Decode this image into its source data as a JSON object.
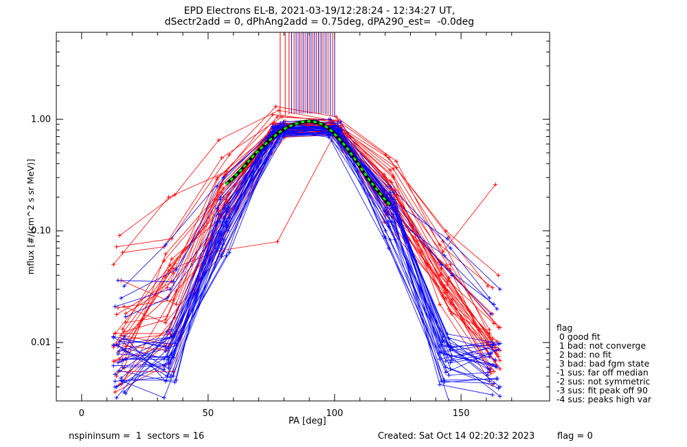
{
  "title_line1": "EPD Electrons EL-B, 2021-03-19/12:28:24 - 12:34:27 UT,",
  "title_line2": "dSectr2add = 0, dPhAng2add = 0.75deg, dPA290_est=  -0.0deg",
  "footer": {
    "left": "nspininsum =  1  sectors = 16",
    "created": "Created: Sat Oct 14 02:20:32 2023",
    "flag": "flag = 0"
  },
  "legend": {
    "heading": "flag",
    "items": [
      " 0 good fit",
      " 1 bad: not converge",
      " 2 bad: no fit",
      " 3 bad: bad fgm state",
      "-1 sus: far off median",
      "-2 sus: not symmetric",
      "-3 sus: fit peak off 90",
      "-4 sus: peaks high var"
    ]
  },
  "colors": {
    "series_a": "#ff0000",
    "series_b": "#0000ff",
    "fit_outer": "#000000",
    "fit_inner": "#00ff00",
    "axes": "#000000"
  },
  "chart_data": {
    "type": "line",
    "xlabel": "PA [deg]",
    "ylabel": "mflux [#/(cm^2 s sr MeV)]",
    "xlim": [
      -10,
      185
    ],
    "ylim": [
      0.003,
      6
    ],
    "yscale": "log",
    "xticks": [
      0,
      50,
      100,
      150
    ],
    "xtick_labels": [
      "0",
      "50",
      "100",
      "150"
    ],
    "yticks": [
      0.01,
      0.1,
      1.0
    ],
    "ytick_labels": [
      "0.01",
      "0.10",
      "1.00"
    ],
    "grid": false,
    "pa_bins": [
      15,
      35,
      56,
      78,
      100,
      122,
      144,
      163
    ],
    "series": [
      {
        "color": "red",
        "values": [
          [
            0.0068,
            0.013,
            0.19,
            0.9,
            0.92,
            0.3,
            0.052,
            0.018
          ],
          [
            0.0125,
            0.016,
            0.2,
            0.88,
            0.89,
            0.28,
            0.05,
            0.013
          ],
          [
            0.0042,
            0.029,
            0.078,
            0.76,
            0.78,
            0.15,
            0.029,
            0.0058
          ],
          [
            0.0095,
            0.046,
            0.066,
            0.08,
            0.83,
            0.18,
            0.031,
            0.0079
          ],
          [
            0.0068,
            0.0095,
            0.11,
            0.74,
            0.77,
            0.19,
            0.046,
            0.0085
          ],
          [
            0.0182,
            0.031,
            0.31,
            0.96,
            0.93,
            0.27,
            0.022,
            0.0058
          ],
          [
            0.0045,
            0.0094,
            0.26,
            0.86,
            0.83,
            0.26,
            0.038,
            0.0096
          ],
          [
            0.0042,
            0.0167,
            0.15,
            0.7,
            0.79,
            0.14,
            0.025,
            0.0075
          ],
          [
            0.005,
            0.056,
            0.15,
            0.84,
            0.87,
            0.37,
            0.081,
            0.009
          ],
          [
            0.0094,
            0.044,
            0.19,
            0.86,
            0.92,
            0.31,
            0.022,
            0.0042
          ],
          [
            0.0085,
            0.039,
            0.24,
            0.92,
            0.91,
            0.2,
            0.023,
            0.011
          ],
          [
            0.0116,
            0.0094,
            0.13,
            0.83,
            0.75,
            0.25,
            0.033,
            0.0069
          ],
          [
            0.0205,
            0.024,
            0.29,
            1.05,
            0.98,
            0.31,
            0.032,
            0.0085
          ],
          [
            0.0121,
            0.012,
            0.21,
            0.93,
            0.85,
            0.17,
            0.046,
            0.0095
          ],
          [
            0.0151,
            0.0172,
            0.32,
            0.91,
            0.92,
            0.2,
            0.018,
            0.0055
          ],
          [
            0.0132,
            0.054,
            0.22,
            0.8,
            0.8,
            0.18,
            0.02,
            0.0094
          ],
          [
            0.0071,
            0.051,
            0.17,
            0.8,
            0.7,
            0.15,
            0.049,
            0.0136
          ],
          [
            0.0178,
            0.035,
            0.14,
            0.84,
            0.75,
            0.21,
            0.026,
            0.0068
          ],
          [
            0.0091,
            0.026,
            0.32,
            0.83,
            0.89,
            0.16,
            0.04,
            0.0107
          ],
          [
            0.0059,
            0.062,
            0.24,
            0.81,
            0.82,
            0.21,
            0.019,
            0.0121
          ],
          [
            0.0106,
            0.012,
            0.14,
            0.92,
            0.88,
            0.17,
            0.046,
            0.0136
          ],
          [
            0.0082,
            0.042,
            0.3,
            0.85,
            0.76,
            0.32,
            0.032,
            0.0102
          ],
          [
            0.012,
            0.049,
            0.18,
            0.91,
            0.92,
            0.23,
            0.041,
            0.0148
          ],
          [
            0.0093,
            0.0085,
            0.13,
            0.69,
            0.72,
            0.14,
            0.024,
            0.0053
          ],
          [
            0.064,
            0.072,
            0.45,
            1.05,
            0.99,
            0.45,
            0.088,
            0.032
          ],
          [
            0.091,
            0.21,
            0.65,
            1.2,
            0.95,
            0.48,
            0.1,
            0.04
          ],
          [
            0.072,
            0.085,
            0.48,
            1.3,
            1.05,
            0.42,
            0.065,
            0.26
          ],
          [
            0.05,
            0.2,
            0.34,
            1.1,
            0.95,
            0.36,
            0.075,
            0.031
          ],
          [
            0.021,
            0.015,
            0.065,
            0.9,
            1.0,
            0.35,
            0.045,
            0.0075
          ],
          [
            0.036,
            0.022,
            0.25,
            0.9,
            0.85,
            0.28,
            0.035,
            0.0085
          ],
          [
            0.0055,
            0.0055,
            0.19,
            0.72,
            0.8,
            0.12,
            0.028,
            0.0062
          ],
          [
            0.0036,
            0.0065,
            0.16,
            0.81,
            0.85,
            0.16,
            0.034,
            0.0055
          ]
        ]
      },
      {
        "color": "blue",
        "values": [
          [
            0.0062,
            0.0064,
            0.11,
            0.86,
            0.76,
            0.14,
            0.0042,
            0.0034
          ],
          [
            0.0114,
            0.0045,
            0.076,
            0.7,
            0.72,
            0.19,
            0.0058,
            0.0045
          ],
          [
            0.0046,
            0.0046,
            0.19,
            0.76,
            0.81,
            0.14,
            0.0078,
            0.0033
          ],
          [
            0.0066,
            0.0116,
            0.16,
            0.7,
            0.75,
            0.23,
            0.0044,
            0.0048
          ],
          [
            0.004,
            0.0067,
            0.11,
            0.84,
            0.86,
            0.16,
            0.0096,
            0.0063
          ],
          [
            0.0083,
            0.005,
            0.13,
            0.73,
            0.75,
            0.17,
            0.009,
            0.0101
          ],
          [
            0.0071,
            0.0071,
            0.059,
            0.75,
            0.71,
            0.07,
            0.0051,
            0.0054
          ],
          [
            0.0084,
            0.0114,
            0.079,
            0.72,
            0.74,
            0.16,
            0.0068,
            0.0097
          ],
          [
            0.0032,
            0.013,
            0.16,
            0.88,
            0.81,
            0.15,
            0.0114,
            0.0084
          ],
          [
            0.0095,
            0.007,
            0.06,
            0.82,
            0.73,
            0.22,
            0.0081,
            0.0063
          ],
          [
            0.0107,
            0.0092,
            0.11,
            0.9,
            0.84,
            0.083,
            0.0066,
            0.0075
          ],
          [
            0.0048,
            0.0125,
            0.12,
            0.81,
            0.8,
            0.12,
            0.0095,
            0.004
          ],
          [
            0.0093,
            0.005,
            0.069,
            0.88,
            0.82,
            0.09,
            0.0046,
            0.0047
          ],
          [
            0.0052,
            0.0111,
            0.15,
            0.75,
            0.76,
            0.084,
            0.0082,
            0.0097
          ],
          [
            0.0071,
            0.0075,
            0.17,
            0.76,
            0.85,
            0.2,
            0.0076,
            0.0081
          ],
          [
            0.006,
            0.0062,
            0.062,
            0.79,
            0.69,
            0.18,
            0.0108,
            0.0059
          ],
          [
            0.0056,
            0.0044,
            0.14,
            0.85,
            0.8,
            0.1,
            0.006,
            0.0039
          ],
          [
            0.0096,
            0.0112,
            0.13,
            0.76,
            0.73,
            0.14,
            0.0102,
            0.0061
          ],
          [
            0.0113,
            0.0089,
            0.12,
            0.77,
            0.81,
            0.17,
            0.0071,
            0.009
          ],
          [
            0.0036,
            0.0084,
            0.083,
            0.81,
            0.83,
            0.22,
            0.0086,
            0.0057
          ],
          [
            0.0068,
            0.0094,
            0.095,
            0.72,
            0.79,
            0.21,
            0.0119,
            0.0098
          ],
          [
            0.0079,
            0.0073,
            0.12,
            0.82,
            0.87,
            0.19,
            0.0079,
            0.006
          ],
          [
            0.0045,
            0.0049,
            0.1,
            0.79,
            0.79,
            0.12,
            0.0045,
            0.0043
          ],
          [
            0.0035,
            0.0125,
            0.16,
            0.74,
            0.77,
            0.12,
            0.0069,
            0.0079
          ],
          [
            0.0087,
            0.0057,
            0.092,
            0.77,
            0.73,
            0.11,
            0.0094,
            0.0051
          ],
          [
            0.0102,
            0.0098,
            0.14,
            0.86,
            0.82,
            0.086,
            0.0054,
            0.0087
          ],
          [
            0.004,
            0.0079,
            0.064,
            0.72,
            0.78,
            0.16,
            0.0105,
            0.007
          ],
          [
            0.0111,
            0.0059,
            0.15,
            0.85,
            0.84,
            0.19,
            0.0092,
            0.0095
          ],
          [
            0.032,
            0.075,
            0.3,
            0.95,
            1.0,
            0.25,
            0.07,
            0.025
          ],
          [
            0.025,
            0.045,
            0.2,
            0.92,
            0.95,
            0.2,
            0.085,
            0.03
          ],
          [
            0.036,
            0.035,
            0.25,
            0.88,
            0.92,
            0.15,
            0.06,
            0.02
          ],
          [
            0.021,
            0.03,
            0.16,
            0.85,
            0.88,
            0.18,
            0.05,
            0.022
          ],
          [
            0.017,
            0.025,
            0.12,
            0.82,
            0.85,
            0.16,
            0.04,
            0.018
          ],
          [
            0.0045,
            0.0032,
            0.07,
            0.78,
            0.8,
            0.12,
            0.003,
            0.0025
          ]
        ]
      }
    ],
    "spikes": {
      "description": "vertical lines exceeding plot top near PA 78-100",
      "pa": [
        78.5,
        80.5,
        82,
        83,
        84,
        84.8,
        85.6,
        86.3,
        87.1,
        87.8,
        88.6,
        89.3,
        90,
        90.7,
        91.4,
        92.1,
        92.8,
        93.6,
        94.3,
        95,
        95.8,
        96.6,
        97.4,
        98.3,
        99.2,
        100
      ],
      "base_flux": [
        1.05,
        1.08,
        1.1,
        1.12,
        1.12,
        1.13,
        1.13,
        1.12,
        1.12,
        1.13,
        1.13,
        1.12,
        1.12,
        1.12,
        1.13,
        1.13,
        1.12,
        1.12,
        1.12,
        1.12,
        1.12,
        1.11,
        1.1,
        1.08,
        1.07,
        1.05
      ],
      "colors": [
        "red",
        "red",
        "red",
        "blue",
        "red",
        "blue",
        "red",
        "blue",
        "red",
        "blue",
        "red",
        "blue",
        "red",
        "blue",
        "red",
        "blue",
        "red",
        "blue",
        "red",
        "blue",
        "red",
        "blue",
        "red",
        "blue",
        "red",
        "blue"
      ]
    },
    "fit_curve": {
      "description": "dashed green fit with black outline",
      "pa": [
        57,
        60,
        63,
        66,
        69,
        72,
        75,
        78,
        81,
        84,
        87,
        90,
        93,
        96,
        99,
        102,
        105,
        108,
        111,
        114,
        117,
        120,
        122
      ],
      "values": [
        0.26,
        0.3,
        0.35,
        0.42,
        0.5,
        0.58,
        0.67,
        0.76,
        0.84,
        0.9,
        0.94,
        0.96,
        0.94,
        0.88,
        0.78,
        0.66,
        0.55,
        0.44,
        0.35,
        0.28,
        0.23,
        0.19,
        0.17
      ]
    }
  }
}
